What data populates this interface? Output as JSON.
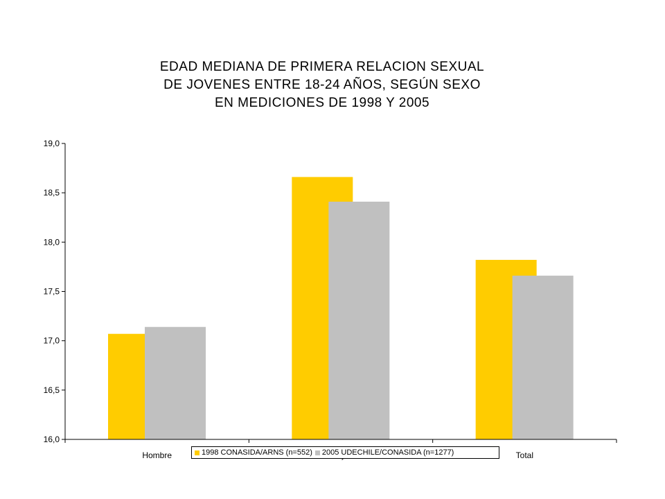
{
  "chart_data": {
    "type": "bar",
    "title_lines": [
      "EDAD MEDIANA DE PRIMERA RELACION SEXUAL",
      "DE JOVENES ENTRE 18-24 AÑOS, SEGÚN SEXO",
      "EN MEDICIONES DE 1998 Y 2005"
    ],
    "categories": [
      "Hombre",
      "Mujer",
      "Total"
    ],
    "series": [
      {
        "name": "1998 CONASIDA/ARNS (n=552)",
        "color": "#FFCC00",
        "values": [
          17.07,
          18.66,
          17.82
        ]
      },
      {
        "name": "2005 UDECHILE/CONASIDA (n=1277)",
        "color": "#C0C0C0",
        "values": [
          17.14,
          18.41,
          17.66
        ]
      }
    ],
    "ylim": [
      16.0,
      19.0
    ],
    "yticks": [
      "16,0",
      "16,5",
      "17,0",
      "17,5",
      "18,0",
      "18,5",
      "19,0"
    ],
    "legend_position": "bottom",
    "grid": false
  }
}
